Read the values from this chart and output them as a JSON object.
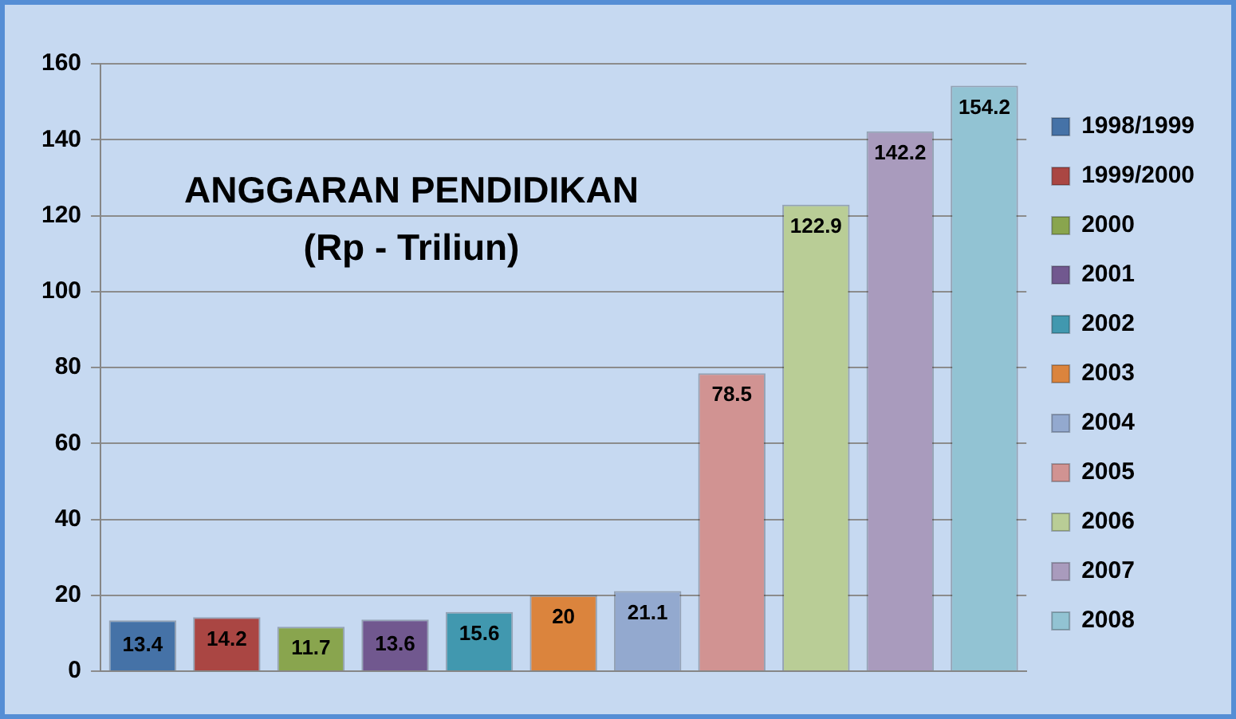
{
  "chart_data": {
    "type": "bar",
    "title": "ANGGARAN PENDIDIKAN\n(Rp - Triliun)",
    "categories": [
      null,
      null,
      null,
      null,
      null,
      null,
      null,
      null,
      null,
      null,
      null
    ],
    "series": [
      {
        "name": "1998/1999",
        "color": "#4572a7",
        "values": [
          13.4,
          null,
          null,
          null,
          null,
          null,
          null,
          null,
          null,
          null,
          null
        ]
      },
      {
        "name": "1999/2000",
        "color": "#aa4643",
        "values": [
          null,
          14.2,
          null,
          null,
          null,
          null,
          null,
          null,
          null,
          null,
          null
        ]
      },
      {
        "name": "2000",
        "color": "#89a54e",
        "values": [
          null,
          null,
          11.7,
          null,
          null,
          null,
          null,
          null,
          null,
          null,
          null
        ]
      },
      {
        "name": "2001",
        "color": "#71588f",
        "values": [
          null,
          null,
          null,
          13.6,
          null,
          null,
          null,
          null,
          null,
          null,
          null
        ]
      },
      {
        "name": "2002",
        "color": "#4198af",
        "values": [
          null,
          null,
          null,
          null,
          15.6,
          null,
          null,
          null,
          null,
          null,
          null
        ]
      },
      {
        "name": "2003",
        "color": "#db843d",
        "values": [
          null,
          null,
          null,
          null,
          null,
          20,
          null,
          null,
          null,
          null,
          null
        ]
      },
      {
        "name": "2004",
        "color": "#93a9cf",
        "values": [
          null,
          null,
          null,
          null,
          null,
          null,
          21.1,
          null,
          null,
          null,
          null
        ]
      },
      {
        "name": "2005",
        "color": "#d19392",
        "values": [
          null,
          null,
          null,
          null,
          null,
          null,
          null,
          78.5,
          null,
          null,
          null
        ]
      },
      {
        "name": "2006",
        "color": "#b9cd96",
        "values": [
          null,
          null,
          null,
          null,
          null,
          null,
          null,
          null,
          122.9,
          null,
          null
        ]
      },
      {
        "name": "2007",
        "color": "#a99bbd",
        "values": [
          null,
          null,
          null,
          null,
          null,
          null,
          null,
          null,
          null,
          142.2,
          null
        ]
      },
      {
        "name": "2008",
        "color": "#92c3d3",
        "values": [
          null,
          null,
          null,
          null,
          null,
          null,
          null,
          null,
          null,
          null,
          154.2
        ]
      }
    ],
    "ylim": [
      0,
      160
    ],
    "yticks": [
      0,
      20,
      40,
      60,
      80,
      100,
      120,
      140,
      160
    ],
    "grid": "y",
    "legend": "right",
    "data_labels": true
  }
}
